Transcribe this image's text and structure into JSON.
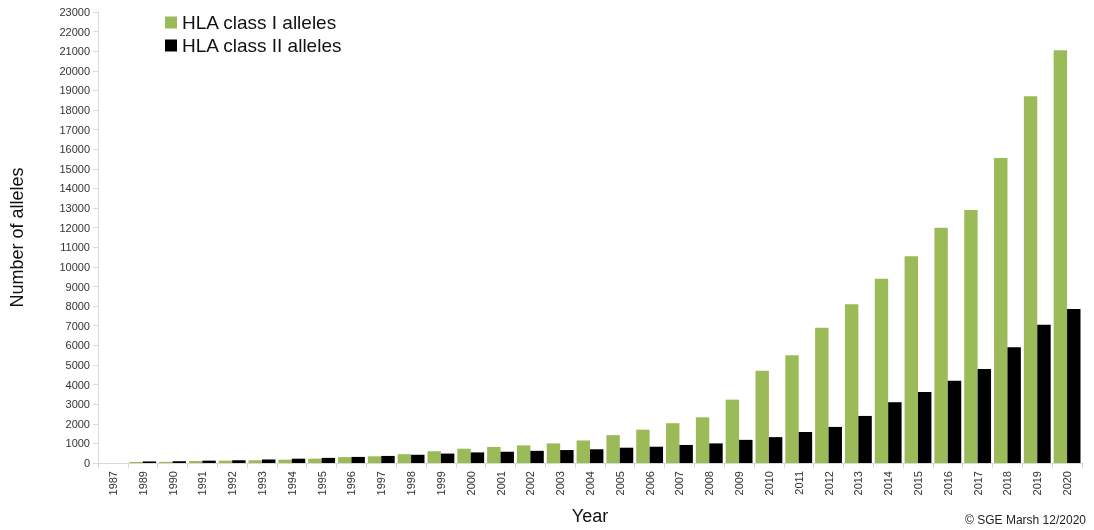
{
  "chart_data": {
    "type": "bar",
    "xlabel": "Year",
    "ylabel": "Number of alleles",
    "categories": [
      "1987",
      "1989",
      "1990",
      "1991",
      "1992",
      "1993",
      "1994",
      "1995",
      "1996",
      "1997",
      "1998",
      "1999",
      "2000",
      "2001",
      "2002",
      "2003",
      "2004",
      "2005",
      "2006",
      "2007",
      "2008",
      "2009",
      "2010",
      "2011",
      "2012",
      "2013",
      "2014",
      "2015",
      "2016",
      "2017",
      "2018",
      "2019",
      "2020"
    ],
    "series": [
      {
        "name": "HLA class I alleles",
        "color": "#9bbb59",
        "values": [
          null,
          50,
          60,
          100,
          120,
          140,
          170,
          220,
          300,
          340,
          450,
          600,
          730,
          820,
          900,
          1000,
          1150,
          1420,
          1700,
          2030,
          2330,
          3230,
          4700,
          5500,
          6900,
          8100,
          9400,
          10550,
          12000,
          12900,
          15550,
          18700,
          21050
        ]
      },
      {
        "name": "HLA class II alleles",
        "color": "#000000",
        "values": [
          0,
          80,
          90,
          120,
          140,
          180,
          220,
          260,
          310,
          360,
          420,
          480,
          540,
          580,
          620,
          660,
          700,
          780,
          830,
          920,
          1000,
          1180,
          1320,
          1580,
          1840,
          2400,
          3100,
          3620,
          4200,
          4800,
          5900,
          7050,
          7850
        ]
      }
    ],
    "ylim": [
      0,
      23000
    ],
    "yticks": [
      0,
      1000,
      2000,
      3000,
      4000,
      5000,
      6000,
      7000,
      8000,
      9000,
      10000,
      11000,
      12000,
      13000,
      14000,
      15000,
      16000,
      17000,
      18000,
      19000,
      20000,
      21000,
      22000,
      23000
    ],
    "grid": false,
    "legend": "top left",
    "annotations": [
      "© SGE Marsh 12/2020"
    ]
  }
}
